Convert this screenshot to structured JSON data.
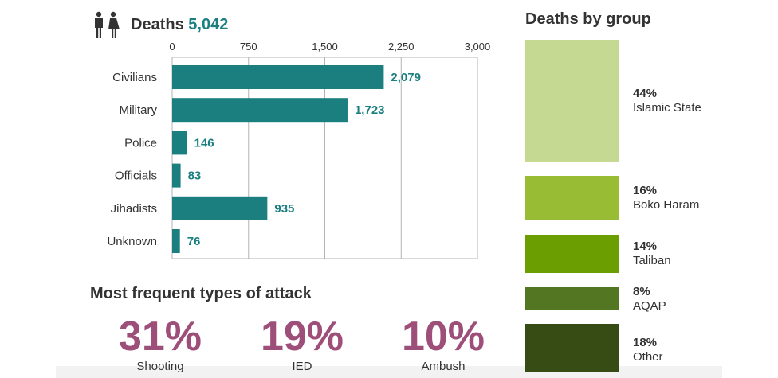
{
  "deaths": {
    "label": "Deaths",
    "total": "5,042"
  },
  "chart_data": {
    "type": "bar",
    "orientation": "horizontal",
    "categories": [
      "Civilians",
      "Military",
      "Police",
      "Officials",
      "Jihadists",
      "Unknown"
    ],
    "values": [
      2079,
      1723,
      146,
      83,
      935,
      76
    ],
    "value_labels": [
      "2,079",
      "1,723",
      "146",
      "83",
      "935",
      "76"
    ],
    "xlim": [
      0,
      3000
    ],
    "ticks": [
      0,
      750,
      1500,
      2250,
      3000
    ],
    "tick_labels": [
      "0",
      "750",
      "1,500",
      "2,250",
      "3,000"
    ],
    "grid": true,
    "bar_color": "#1b7f80"
  },
  "attack_types": {
    "title": "Most frequent types of attack",
    "items": [
      {
        "pct": "31%",
        "label": "Shooting"
      },
      {
        "pct": "19%",
        "label": "IED"
      },
      {
        "pct": "10%",
        "label": "Ambush"
      }
    ],
    "color": "#9e4f79"
  },
  "groups": {
    "title": "Deaths by group",
    "items": [
      {
        "pct": "44%",
        "name": "Islamic State",
        "share": 44,
        "color": "#c5d993"
      },
      {
        "pct": "16%",
        "name": "Boko Haram",
        "share": 16,
        "color": "#98bc34"
      },
      {
        "pct": "14%",
        "name": "Taliban",
        "share": 14,
        "color": "#6b9e00"
      },
      {
        "pct": "8%",
        "name": "AQAP",
        "share": 8,
        "color": "#537623"
      },
      {
        "pct": "18%",
        "name": "Other",
        "share": 18,
        "color": "#374c14"
      }
    ]
  }
}
